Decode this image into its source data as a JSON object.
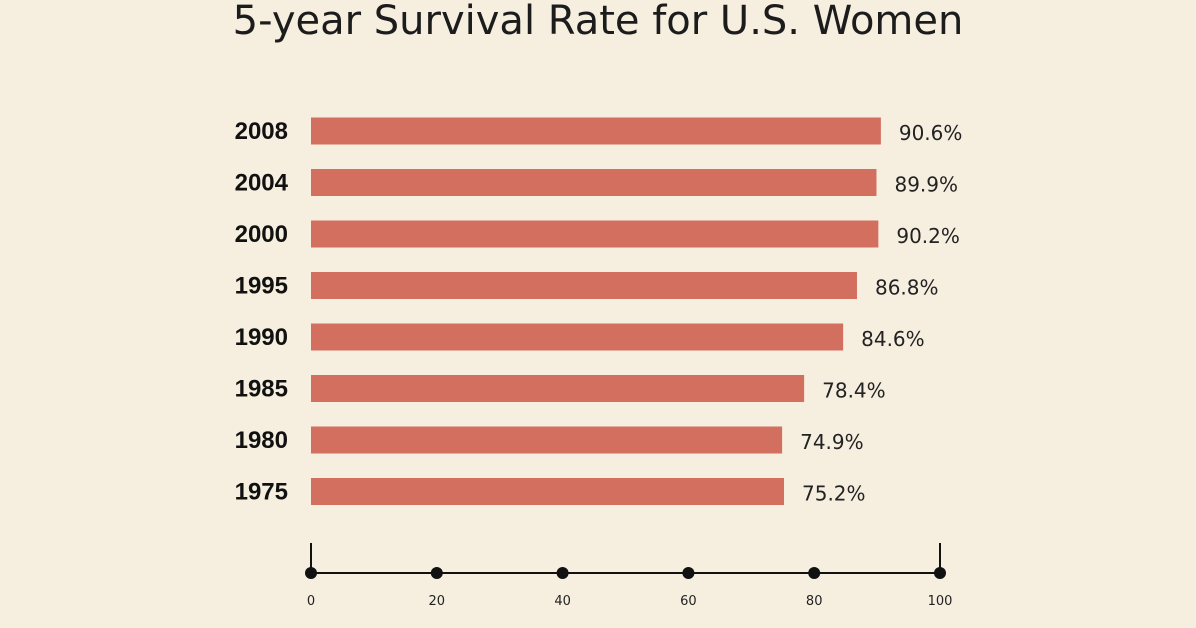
{
  "chart_data": {
    "type": "bar",
    "orientation": "horizontal",
    "title": "5-year Survival Rate for U.S. Women",
    "categories": [
      "2008",
      "2004",
      "2000",
      "1995",
      "1990",
      "1985",
      "1980",
      "1975"
    ],
    "values": [
      90.6,
      89.9,
      90.2,
      86.8,
      84.6,
      78.4,
      74.9,
      75.2
    ],
    "value_labels": [
      "90.6%",
      "89.9%",
      "90.2%",
      "86.8%",
      "84.6%",
      "78.4%",
      "74.9%",
      "75.2%"
    ],
    "xlim": [
      0,
      100
    ],
    "xticks": [
      0,
      20,
      40,
      60,
      80,
      100
    ],
    "xtick_labels": [
      "0",
      "20",
      "40",
      "60",
      "80",
      "100"
    ],
    "xlabel": "",
    "ylabel": "",
    "grid": false,
    "bar_color": "#d36f5f",
    "axis_color": "#111111"
  }
}
